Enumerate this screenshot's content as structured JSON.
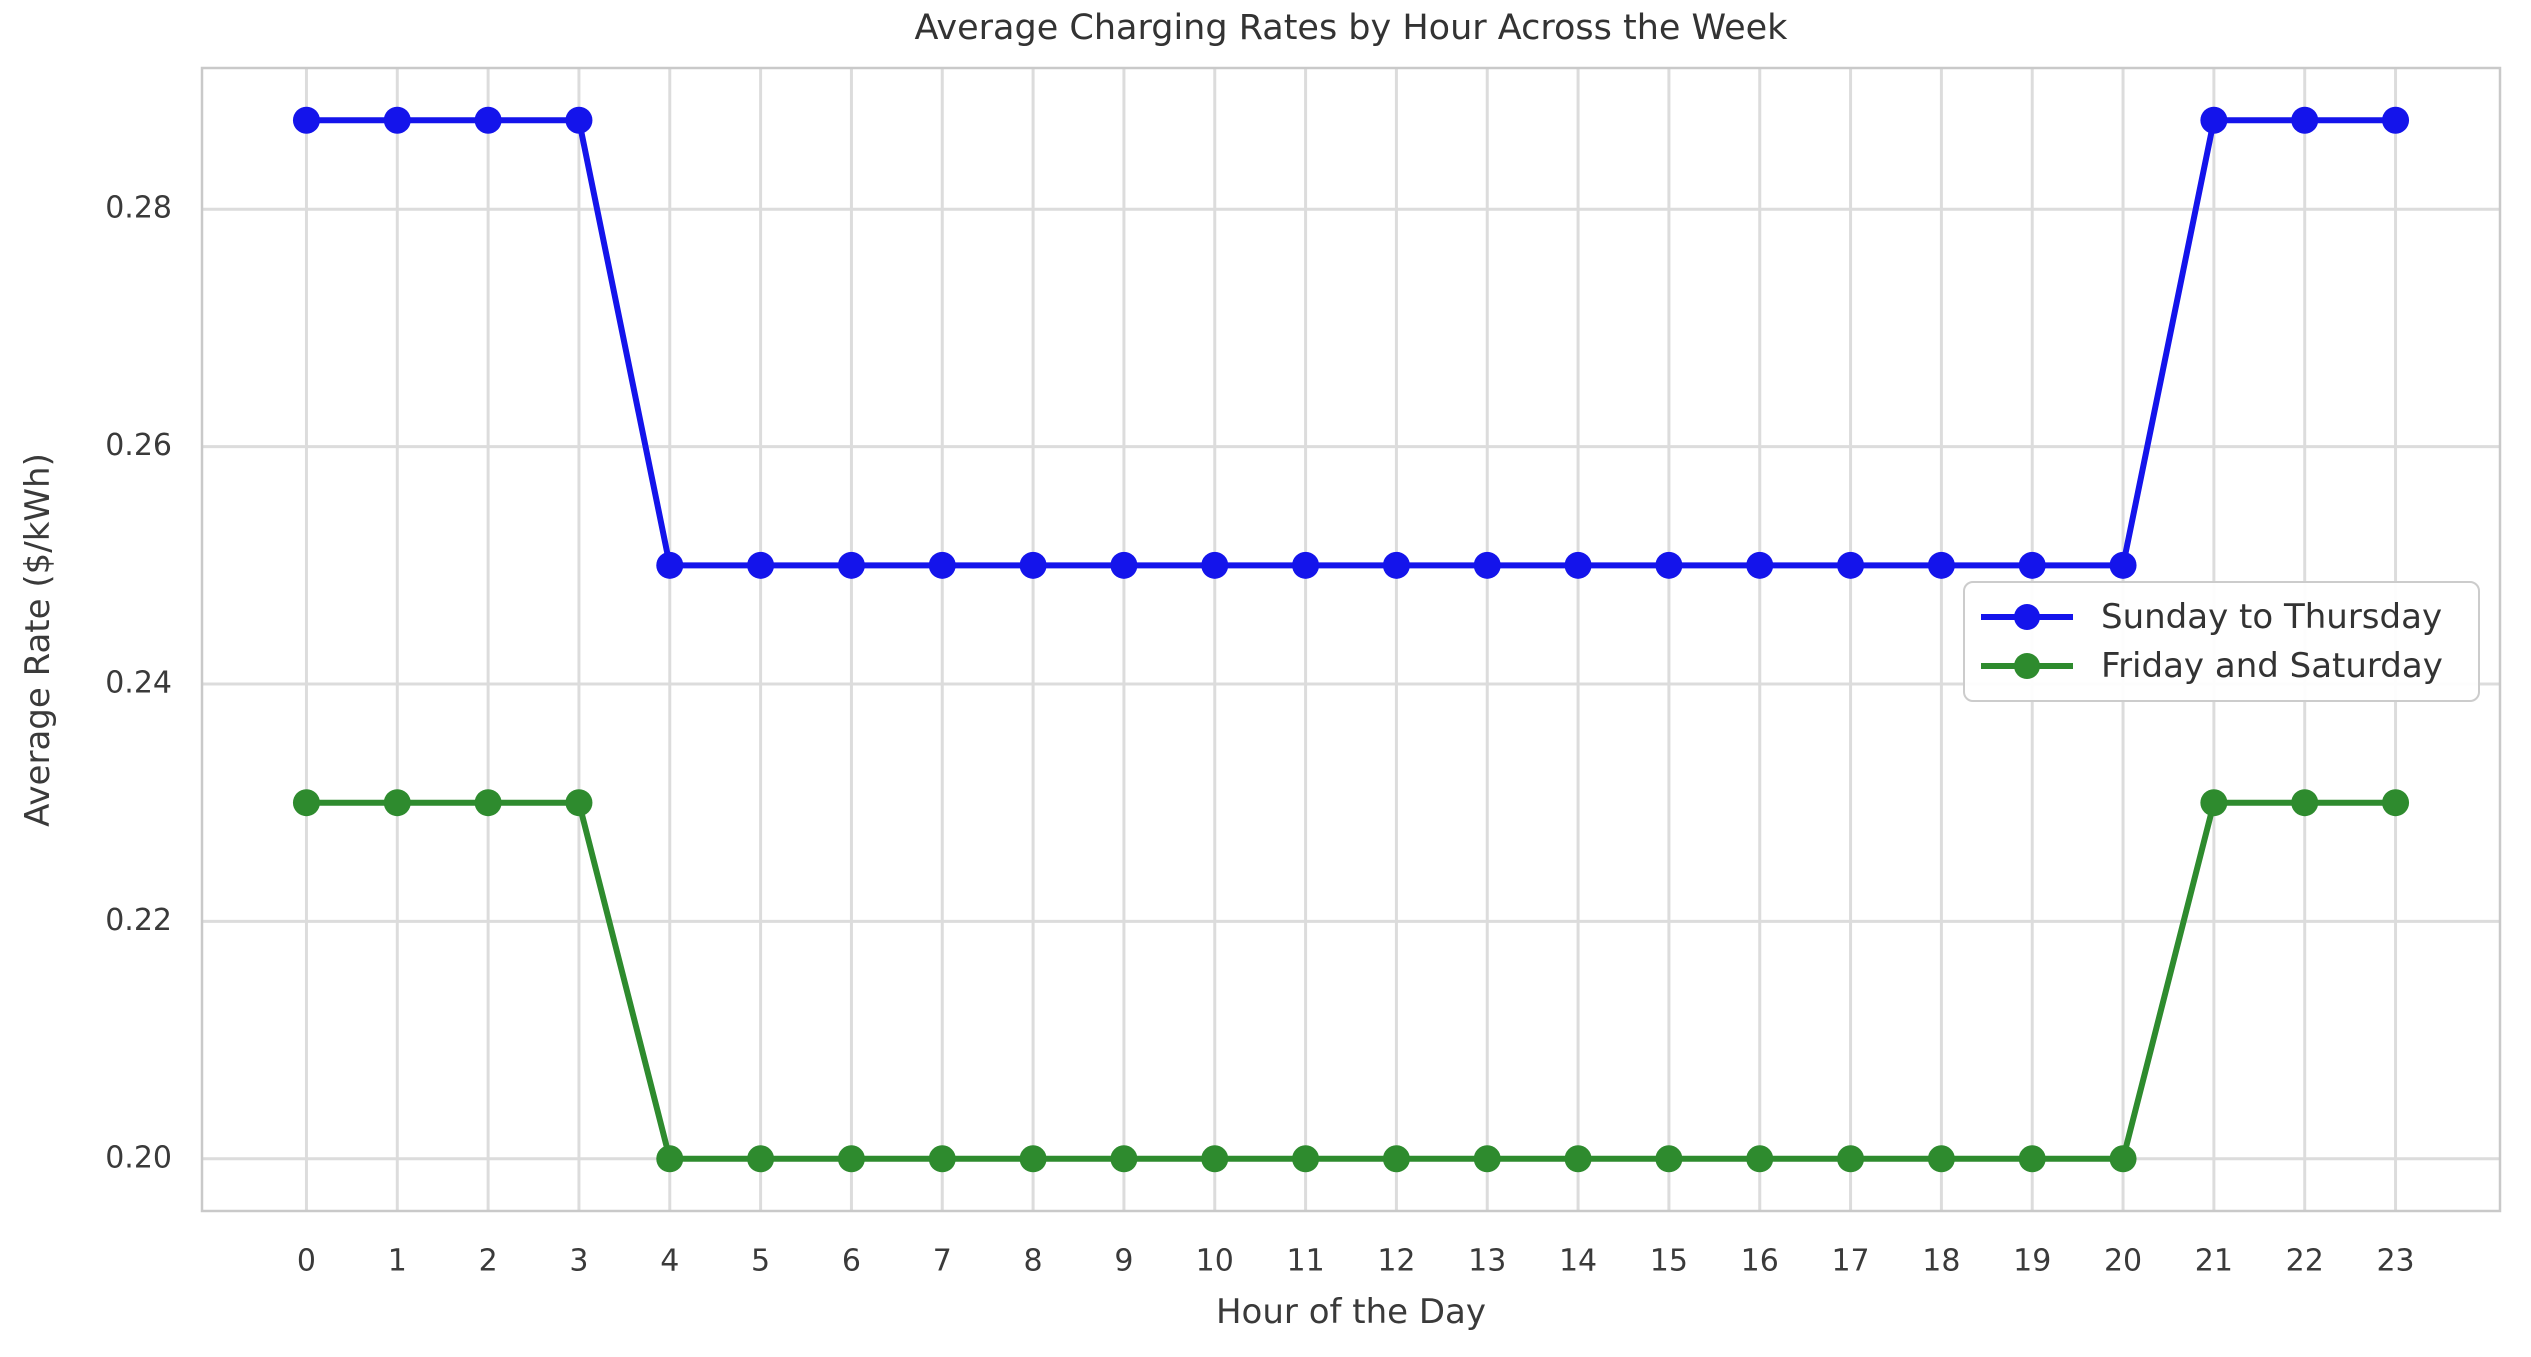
{
  "chart_data": {
    "type": "line",
    "title": "Average Charging Rates by Hour Across the Week",
    "xlabel": "Hour of the Day",
    "ylabel": "Average Rate ($/kWh)",
    "x": [
      0,
      1,
      2,
      3,
      4,
      5,
      6,
      7,
      8,
      9,
      10,
      11,
      12,
      13,
      14,
      15,
      16,
      17,
      18,
      19,
      20,
      21,
      22,
      23
    ],
    "series": [
      {
        "name": "Sunday to Thursday",
        "color": "#1414EB",
        "values": [
          0.2875,
          0.2875,
          0.2875,
          0.2875,
          0.25,
          0.25,
          0.25,
          0.25,
          0.25,
          0.25,
          0.25,
          0.25,
          0.25,
          0.25,
          0.25,
          0.25,
          0.25,
          0.25,
          0.25,
          0.25,
          0.25,
          0.2875,
          0.2875,
          0.2875
        ]
      },
      {
        "name": "Friday and Saturday",
        "color": "#2E8B2E",
        "values": [
          0.23,
          0.23,
          0.23,
          0.23,
          0.2,
          0.2,
          0.2,
          0.2,
          0.2,
          0.2,
          0.2,
          0.2,
          0.2,
          0.2,
          0.2,
          0.2,
          0.2,
          0.2,
          0.2,
          0.2,
          0.2,
          0.23,
          0.23,
          0.23
        ]
      }
    ],
    "xticks": [
      0,
      1,
      2,
      3,
      4,
      5,
      6,
      7,
      8,
      9,
      10,
      11,
      12,
      13,
      14,
      15,
      16,
      17,
      18,
      19,
      20,
      21,
      22,
      23
    ],
    "xtick_labels": [
      "0",
      "1",
      "2",
      "3",
      "4",
      "5",
      "6",
      "7",
      "8",
      "9",
      "10",
      "11",
      "12",
      "13",
      "14",
      "15",
      "16",
      "17",
      "18",
      "19",
      "20",
      "21",
      "22",
      "23"
    ],
    "yticks": [
      0.2,
      0.22,
      0.24,
      0.26,
      0.28
    ],
    "ytick_labels": [
      "0.20",
      "0.22",
      "0.24",
      "0.26",
      "0.28"
    ],
    "xlim": [
      -1.15,
      24.15
    ],
    "ylim": [
      0.1956,
      0.2919
    ],
    "grid": true,
    "legend_position": "center right"
  },
  "style": {
    "background": "#FFFFFF",
    "grid_color": "#DCDCDC",
    "spine_color": "#C9C9C9",
    "tick_text_color": "#3A3A3A",
    "title_color": "#333333",
    "legend_border_color": "#CCCCCC"
  }
}
